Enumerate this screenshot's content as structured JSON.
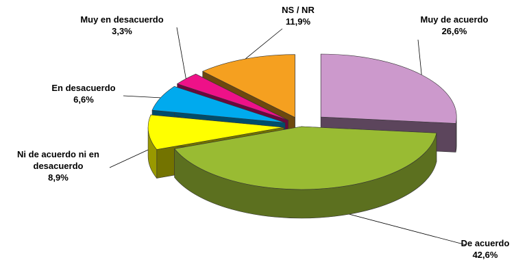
{
  "chart_data": {
    "type": "pie",
    "title": "",
    "three_d": true,
    "exploded": true,
    "slices": [
      {
        "label": "Muy de acuerdo",
        "value": 26.6,
        "display": "26,6%",
        "color": "#cc99cc"
      },
      {
        "label": "De acuerdo",
        "value": 42.6,
        "display": "42,6%",
        "color": "#99bb33"
      },
      {
        "label": "Ni de acuerdo ni en desacuerdo",
        "value": 8.9,
        "display": "8,9%",
        "color": "#ffff00"
      },
      {
        "label": "En desacuerdo",
        "value": 6.6,
        "display": "6,6%",
        "color": "#00aaee"
      },
      {
        "label": "Muy en desacuerdo",
        "value": 3.3,
        "display": "3,3%",
        "color": "#ee1188"
      },
      {
        "label": "NS / NR",
        "value": 11.9,
        "display": "11,9%",
        "color": "#f5a020"
      }
    ]
  }
}
